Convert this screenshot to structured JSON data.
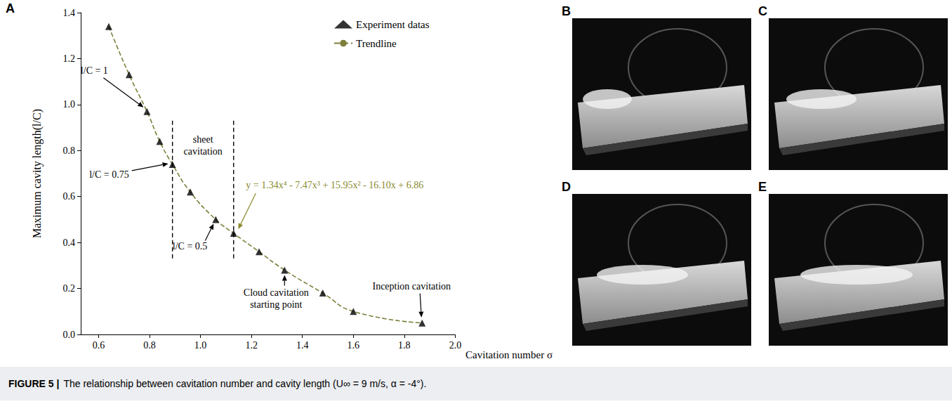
{
  "chart_data": {
    "type": "scatter",
    "x_label": "Cavitation number σ",
    "y_label": "Maximum cavity length(l/C)",
    "series": [
      {
        "name": "Experiment datas",
        "type": "scatter",
        "marker": "triangle",
        "color": "#000000",
        "x": [
          0.64,
          0.72,
          0.79,
          0.84,
          0.89,
          0.96,
          1.06,
          1.13,
          1.23,
          1.33,
          1.48,
          1.6,
          1.87
        ],
        "values": [
          1.34,
          1.13,
          0.97,
          0.84,
          0.74,
          0.62,
          0.5,
          0.44,
          0.36,
          0.28,
          0.18,
          0.1,
          0.05
        ]
      },
      {
        "name": "Trendline",
        "type": "line",
        "line_style": "dashed",
        "color": "#7d7f3a",
        "x": [
          0.64,
          0.72,
          0.79,
          0.84,
          0.89,
          0.96,
          1.06,
          1.13,
          1.23,
          1.33,
          1.48,
          1.6,
          1.87
        ],
        "values": [
          1.34,
          1.13,
          0.97,
          0.84,
          0.74,
          0.62,
          0.5,
          0.44,
          0.36,
          0.28,
          0.18,
          0.1,
          0.05
        ]
      }
    ],
    "xlim": [
      0.53,
      2.0
    ],
    "xticks": [
      0.6,
      0.8,
      {
        "value": 1,
        "label": "1.0"
      },
      1.2,
      1.4,
      1.6,
      1.8,
      {
        "value": 2,
        "label": "2.0"
      }
    ],
    "ylim": [
      0,
      1.4
    ],
    "yticks": [
      {
        "value": 0,
        "label": "0.0"
      },
      0.2,
      0.4,
      0.6,
      0.8,
      {
        "value": 1,
        "label": "1.0"
      },
      1.2,
      1.4
    ],
    "grid": false,
    "legend": "upper right",
    "annotations": [
      {
        "text": "l/C = 1",
        "x": 0.79,
        "y": 0.97
      },
      {
        "text": "l/C = 0.75",
        "x": 0.89,
        "y": 0.74
      },
      {
        "text": "l/C = 0.5",
        "x": 1.06,
        "y": 0.5
      },
      {
        "text": "Cloud cavitation starting point",
        "x": 1.33,
        "y": 0.28
      },
      {
        "text": "Inception cavitation",
        "x": 1.87,
        "y": 0.05
      },
      {
        "text": "y = 1.34x⁴ - 7.47x³ + 15.95x² - 16.10x + 6.86",
        "x": 1.14,
        "y": 0.44,
        "color": "#8a8a2e"
      }
    ],
    "region": {
      "text": "sheet cavitation",
      "x": [
        0.89,
        1.13
      ],
      "y": [
        0.33,
        0.93
      ]
    }
  },
  "figure": {
    "panel_label": "A",
    "image_panels": [
      "B",
      "C",
      "D",
      "E"
    ],
    "caption": {
      "label": "FIGURE 5 |",
      "text": "The relationship between cavitation number and cavity length (U∞ = 9 m/s, α = -4°)."
    }
  }
}
